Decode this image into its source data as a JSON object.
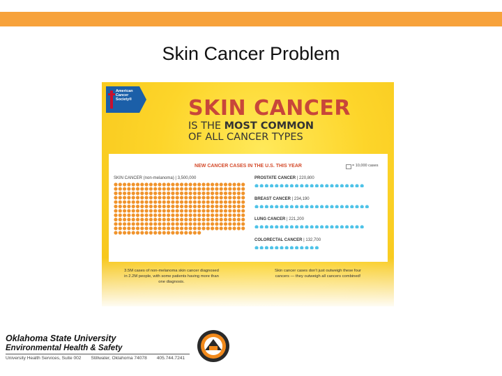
{
  "slide": {
    "title": "Skin Cancer Problem"
  },
  "infographic": {
    "logo_text": [
      "American",
      "Cancer",
      "Society®"
    ],
    "headline_main": "SKIN CANCER",
    "headline_line2_prefix": "IS THE ",
    "headline_line2_bold": "MOST COMMON",
    "headline_line3": "OF ALL CANCER TYPES",
    "panel_title": "NEW CANCER CASES IN THE U.S. THIS YEAR",
    "legend_text": "= 10,000 cases",
    "skin_label": "SKIN CANCER (non-melanoma)",
    "skin_value": "3,500,000",
    "note_left": "3.5M cases of non-melanoma skin cancer diagnosed in 2.2M people, with some patients having more than one diagnosis.",
    "note_right": "Skin cancer cases don't just outweigh these four cancers — they outweigh all cancers combined!",
    "colors": {
      "skin_dot": "#f0932b",
      "other_dot": "#4fc3e8",
      "headline": "#c8463a"
    }
  },
  "chart_data": {
    "type": "bar",
    "title": "NEW CANCER CASES IN THE U.S. THIS YEAR",
    "unit_note": "= 10,000 cases",
    "categories": [
      "SKIN CANCER (non-melanoma)",
      "PROSTATE CANCER",
      "BREAST CANCER",
      "LUNG CANCER",
      "COLORECTAL CANCER"
    ],
    "labels": [
      "3,500,000",
      "220,800",
      "234,190",
      "221,200",
      "132,700"
    ],
    "values": [
      3500000,
      220800,
      234190,
      221200,
      132700
    ]
  },
  "footer": {
    "line1": "Oklahoma State University",
    "line2": "Environmental Health & Safety",
    "address": [
      "University Health Services, Suite 002",
      "Stillwater, Oklahoma 74078",
      "405.744.7241"
    ]
  }
}
